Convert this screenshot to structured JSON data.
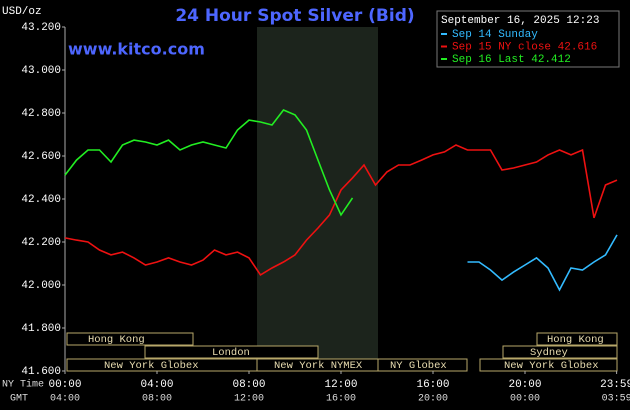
{
  "chart_data": {
    "type": "line",
    "title": "24 Hour Spot Silver (Bid)",
    "y_unit": "USD/oz",
    "website": "www.kitco.com",
    "legend_title": "September 16, 2025 12:23",
    "x_row_label": "NY Time",
    "x2_row_label": "GMT",
    "x": [
      0,
      0.5,
      1,
      1.5,
      2,
      2.5,
      3,
      3.5,
      4,
      4.5,
      5,
      5.5,
      6,
      6.5,
      7,
      7.5,
      8,
      8.5,
      9,
      9.5,
      10,
      10.5,
      11,
      11.5,
      12,
      12.5,
      13,
      13.5,
      14,
      14.5,
      15,
      15.5,
      16,
      16.5,
      17,
      17.5,
      18,
      18.5,
      19,
      19.5,
      20,
      20.5,
      21,
      21.5,
      22,
      22.5,
      23,
      23.5,
      24
    ],
    "series": [
      {
        "name": "Sep 14 Sunday",
        "color": "#33bbff",
        "values": [
          null,
          null,
          null,
          null,
          null,
          null,
          null,
          null,
          null,
          null,
          null,
          null,
          null,
          null,
          null,
          null,
          null,
          null,
          null,
          null,
          null,
          null,
          null,
          null,
          null,
          null,
          null,
          null,
          null,
          null,
          null,
          null,
          null,
          null,
          null,
          42.107,
          42.107,
          42.07,
          42.023,
          42.06,
          42.093,
          42.126,
          42.079,
          41.977,
          42.079,
          42.07,
          42.107,
          42.14,
          42.233
        ]
      },
      {
        "name": "Sep 15 NY close 42.616",
        "color": "#ee1111",
        "values": [
          42.219,
          42.209,
          42.2,
          42.163,
          42.14,
          42.153,
          42.126,
          42.093,
          42.107,
          42.126,
          42.107,
          42.093,
          42.116,
          42.163,
          42.14,
          42.153,
          42.126,
          42.047,
          42.079,
          42.107,
          42.14,
          42.209,
          42.265,
          42.326,
          42.442,
          42.498,
          42.558,
          42.465,
          42.526,
          42.558,
          42.558,
          42.581,
          42.605,
          42.619,
          42.651,
          42.628,
          42.628,
          42.628,
          42.535,
          42.544,
          42.558,
          42.572,
          42.605,
          42.628,
          42.605,
          42.628,
          42.312,
          42.465,
          42.488
        ]
      },
      {
        "name": "Sep 16 Last 42.412",
        "color": "#22ee22",
        "values": [
          42.511,
          42.581,
          42.628,
          42.628,
          42.572,
          42.651,
          42.674,
          42.665,
          42.651,
          42.674,
          42.628,
          42.651,
          42.665,
          42.651,
          42.637,
          42.721,
          42.767,
          42.758,
          42.744,
          42.814,
          42.791,
          42.721,
          42.581,
          42.442,
          42.326,
          42.405,
          null,
          null,
          null,
          null,
          null,
          null,
          null,
          null,
          null,
          null,
          null,
          null,
          null,
          null,
          null,
          null,
          null,
          null,
          null,
          null,
          null,
          null,
          null
        ]
      }
    ],
    "xlim": [
      0,
      24
    ],
    "xticks": [
      {
        "value": 0,
        "label": "00:00"
      },
      {
        "value": 4,
        "label": "04:00"
      },
      {
        "value": 8,
        "label": "08:00"
      },
      {
        "value": 12,
        "label": "12:00"
      },
      {
        "value": 16,
        "label": "16:00"
      },
      {
        "value": 20,
        "label": "20:00"
      },
      {
        "value": 23.983,
        "label": "23:59"
      }
    ],
    "gmt_labels": [
      "04:00",
      "08:00",
      "12:00",
      "16:00",
      "20:00",
      "00:00",
      "03:59"
    ],
    "ylim": [
      41.6,
      43.2
    ],
    "yticks": [
      {
        "value": 41.6,
        "label": "41.600"
      },
      {
        "value": 41.8,
        "label": "41.800"
      },
      {
        "value": 42,
        "label": "42.000"
      },
      {
        "value": 42.2,
        "label": "42.200"
      },
      {
        "value": 42.4,
        "label": "42.400"
      },
      {
        "value": 42.6,
        "label": "42.600"
      },
      {
        "value": 42.8,
        "label": "42.800"
      },
      {
        "value": 43,
        "label": "43.000"
      },
      {
        "value": 43.2,
        "label": "43.200"
      }
    ],
    "sessions": [
      "Hong Kong",
      "London",
      "New York Globex",
      "New York NYMEX",
      "NY Globex",
      "New York Globex",
      "Sydney",
      "Hong Kong"
    ]
  }
}
